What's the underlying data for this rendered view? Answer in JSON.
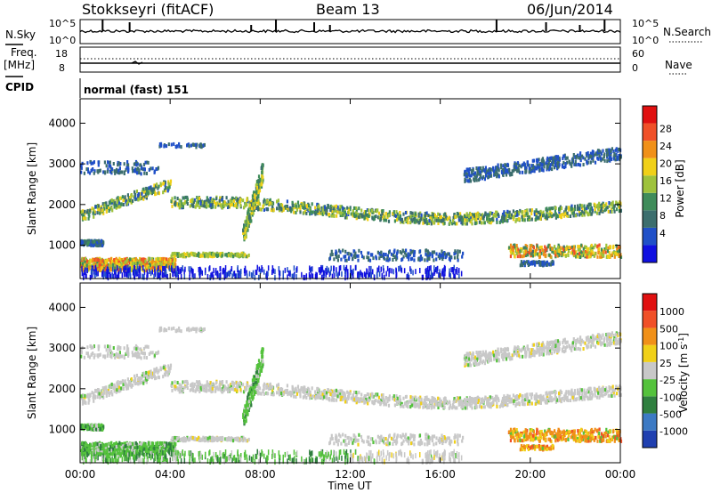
{
  "header": {
    "station": "Stokkseyri (fitACF)",
    "beam": "Beam 13",
    "date": "06/Jun/2014"
  },
  "noise_panel": {
    "left_label": "N.Sky",
    "right_label": "N.Search",
    "ticks_left": [
      "10^5",
      "10^0"
    ],
    "ticks_right": [
      "10^5",
      "10^0"
    ]
  },
  "freq_panel": {
    "left_label_1": "Freq.",
    "left_label_2": "[MHz]",
    "right_label": "Nave",
    "ticks_left": [
      "18",
      "8"
    ],
    "ticks_right": [
      "60",
      "0"
    ]
  },
  "cpid_panel": {
    "label": "CPID",
    "text": "normal (fast) 151"
  },
  "colors": {
    "power_scale": [
      "#1010e0",
      "#2050c8",
      "#3c6e6e",
      "#3f8c5a",
      "#9ec23c",
      "#f0d018",
      "#f09018",
      "#f05028",
      "#e01010"
    ],
    "velocity_scale": [
      "#2040b0",
      "#3c7ac4",
      "#2f7f3f",
      "#54c23c",
      "#c8c8c8",
      "#f0d018",
      "#f09018",
      "#f05028",
      "#e01010"
    ]
  },
  "chart_data": [
    {
      "type": "heatmap",
      "title": "Power",
      "ylabel": "Slant Range [km]",
      "xlabel": "",
      "colorbar_label": "Power [dB]",
      "colorbar_ticks": [
        "28",
        "24",
        "20",
        "16",
        "12",
        "8",
        "4"
      ],
      "x_ticks": [
        "00:00",
        "04:00",
        "08:00",
        "12:00",
        "16:00",
        "20:00",
        "00:00"
      ],
      "y_ticks": [
        1000,
        2000,
        3000,
        4000
      ],
      "ylim": [
        180,
        4600
      ],
      "x_range_hours": [
        0,
        24
      ],
      "features": [
        {
          "name": "F-region band",
          "t_hours": [
            0,
            24
          ],
          "range_km": [
            1700,
            2200
          ],
          "power_db": [
            8,
            20
          ]
        },
        {
          "name": "near-range echoes",
          "t_hours": [
            0,
            4
          ],
          "range_km": [
            300,
            800
          ],
          "power_db": [
            16,
            28
          ]
        },
        {
          "name": "late evening patch",
          "t_hours": [
            19,
            24
          ],
          "range_km": [
            600,
            1200
          ],
          "power_db": [
            12,
            26
          ]
        }
      ]
    },
    {
      "type": "heatmap",
      "title": "Velocity",
      "ylabel": "Slant Range [km]",
      "xlabel": "Time UT",
      "colorbar_label": "Velocity [m s^-1]",
      "colorbar_ticks": [
        "1000",
        "500",
        "100",
        "25",
        "-25",
        "-100",
        "-500",
        "-1000"
      ],
      "x_ticks": [
        "00:00",
        "04:00",
        "08:00",
        "12:00",
        "16:00",
        "20:00",
        "00:00"
      ],
      "y_ticks": [
        1000,
        2000,
        3000,
        4000
      ],
      "ylim": [
        180,
        4600
      ],
      "x_range_hours": [
        0,
        24
      ]
    }
  ]
}
